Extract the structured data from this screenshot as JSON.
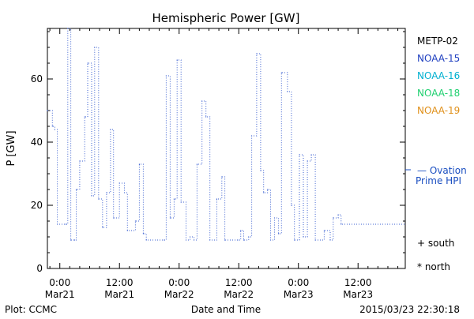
{
  "chart_data": {
    "type": "line",
    "title": "Hemispheric Power [GW]",
    "ylabel": "P [GW]",
    "xlabel": "Date and Time",
    "ylim": [
      0,
      76
    ],
    "yticks": [
      0,
      20,
      40,
      60
    ],
    "xlim": [
      -2.5,
      69.5
    ],
    "xticks": [
      {
        "x": 0,
        "time": "0:00",
        "date": "Mar21"
      },
      {
        "x": 12,
        "time": "12:00",
        "date": "Mar21"
      },
      {
        "x": 24,
        "time": "0:00",
        "date": "Mar22"
      },
      {
        "x": 36,
        "time": "12:00",
        "date": "Mar22"
      },
      {
        "x": 48,
        "time": "0:00",
        "date": "Mar23"
      },
      {
        "x": 60,
        "time": "12:00",
        "date": "Mar23"
      }
    ],
    "series": [
      {
        "name": "NOAA-15",
        "color": "#3a5fd0",
        "points": [
          [
            -2.5,
            50
          ],
          [
            -1.5,
            45
          ],
          [
            -1.0,
            44
          ],
          [
            -0.5,
            14
          ],
          [
            1.2,
            14
          ],
          [
            1.6,
            76
          ],
          [
            2.2,
            9
          ],
          [
            3.0,
            9
          ],
          [
            3.3,
            25
          ],
          [
            4.0,
            34
          ],
          [
            5.0,
            48
          ],
          [
            5.6,
            65
          ],
          [
            6.4,
            23
          ],
          [
            7.0,
            70
          ],
          [
            7.8,
            22
          ],
          [
            8.6,
            13
          ],
          [
            9.4,
            24
          ],
          [
            10.2,
            44
          ],
          [
            10.8,
            16
          ],
          [
            12.0,
            27
          ],
          [
            13.0,
            24
          ],
          [
            13.6,
            12
          ],
          [
            15.2,
            15
          ],
          [
            16.0,
            33
          ],
          [
            16.8,
            11
          ],
          [
            17.4,
            9
          ],
          [
            21.0,
            9
          ],
          [
            21.4,
            61
          ],
          [
            22.2,
            16
          ],
          [
            23.0,
            22
          ],
          [
            23.6,
            66
          ],
          [
            24.4,
            21
          ],
          [
            25.4,
            9
          ],
          [
            26.2,
            10
          ],
          [
            27.0,
            9
          ],
          [
            27.6,
            33
          ],
          [
            28.6,
            53
          ],
          [
            29.4,
            48
          ],
          [
            30.2,
            9
          ],
          [
            31.6,
            22
          ],
          [
            32.6,
            29
          ],
          [
            33.2,
            9
          ],
          [
            35.8,
            9
          ],
          [
            36.4,
            12
          ],
          [
            37.0,
            9
          ],
          [
            38.0,
            10
          ],
          [
            38.6,
            42
          ],
          [
            39.6,
            68
          ],
          [
            40.4,
            31
          ],
          [
            41.0,
            24
          ],
          [
            41.8,
            25
          ],
          [
            42.4,
            9
          ],
          [
            43.2,
            16
          ],
          [
            44.0,
            11
          ],
          [
            44.6,
            62
          ],
          [
            45.8,
            56
          ],
          [
            46.6,
            20
          ],
          [
            47.2,
            9
          ],
          [
            48.2,
            36
          ],
          [
            49.0,
            10
          ],
          [
            49.8,
            34
          ],
          [
            50.6,
            36
          ],
          [
            51.4,
            9
          ],
          [
            53.2,
            12
          ],
          [
            54.4,
            9
          ],
          [
            55.0,
            16
          ],
          [
            56.0,
            17
          ],
          [
            56.6,
            14
          ]
        ]
      }
    ],
    "legend": [
      "METP-02",
      "NOAA-15",
      "NOAA-16",
      "NOAA-18",
      "NOAA-19"
    ],
    "legend_colors": [
      "#000000",
      "#2040c0",
      "#00b0d0",
      "#20d070",
      "#e0901a"
    ],
    "annotations": {
      "ovation_line1": "— Ovation",
      "ovation_line2": "Prime HPI",
      "ovation_color": "#1a4ec0",
      "south": "+ south",
      "north": "* north"
    }
  },
  "footer": {
    "left": "Plot: CCMC",
    "center": "Date and Time",
    "right": "2015/03/23 22:30:18"
  }
}
